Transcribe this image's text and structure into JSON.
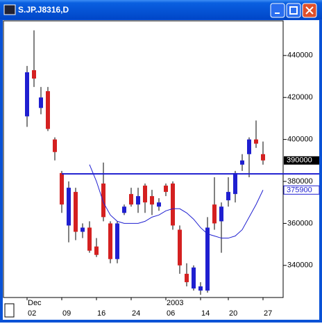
{
  "chart_data": {
    "type": "candlestick",
    "title": "S.JP.J8316,D",
    "categories": [
      "02",
      null,
      null,
      null,
      null,
      "09",
      null,
      null,
      null,
      null,
      "16",
      null,
      null,
      null,
      null,
      "24",
      null,
      null,
      null,
      null,
      "06",
      null,
      null,
      null,
      null,
      "14",
      null,
      null,
      null,
      "20",
      null,
      null,
      null,
      null,
      "27"
    ],
    "top_labels": [
      "Dec",
      null,
      null,
      null,
      null,
      null,
      null,
      null,
      null,
      null,
      null,
      null,
      null,
      null,
      null,
      null,
      null,
      null,
      null,
      null,
      "2003",
      null,
      null,
      null,
      null,
      null,
      null,
      null,
      null,
      null,
      null,
      null,
      null,
      null,
      null
    ],
    "open": [
      411000,
      433000,
      415000,
      423000,
      400000,
      384000,
      359000,
      375000,
      356000,
      358000,
      349000,
      379000,
      360000,
      343000,
      365000,
      374000,
      369000,
      378000,
      373000,
      368000,
      378000,
      379000,
      357000,
      336000,
      329000,
      328000,
      328000,
      369000,
      361000,
      371000,
      374000,
      388000,
      393000,
      400000,
      393000
    ],
    "high": [
      435000,
      452000,
      425000,
      425000,
      401000,
      385000,
      380000,
      377000,
      360000,
      361000,
      353000,
      389000,
      361000,
      361000,
      369000,
      377000,
      377000,
      379000,
      376000,
      372000,
      379000,
      380000,
      359000,
      341000,
      340000,
      332000,
      363000,
      382000,
      370000,
      382000,
      385000,
      393000,
      401000,
      409000,
      399000
    ],
    "low": [
      406000,
      425000,
      412000,
      404000,
      390000,
      365000,
      351000,
      352000,
      353000,
      346000,
      344000,
      361000,
      341000,
      341000,
      364000,
      368000,
      365000,
      365000,
      364000,
      366000,
      373000,
      357000,
      336000,
      330000,
      328000,
      326000,
      327000,
      357000,
      346000,
      368000,
      370000,
      385000,
      382000,
      396000,
      388000
    ],
    "close": [
      432000,
      429000,
      420000,
      405000,
      394000,
      369000,
      377000,
      356000,
      358000,
      347000,
      345000,
      363000,
      343000,
      360000,
      368000,
      369000,
      373000,
      370000,
      369000,
      370000,
      375000,
      359000,
      340000,
      332000,
      339000,
      330000,
      358000,
      360000,
      368000,
      375000,
      384000,
      390000,
      400000,
      398000,
      390000
    ],
    "up_color": "#1f1fd0",
    "down_color": "#d42020",
    "ma": {
      "color": "#1f1fd0",
      "values": [
        null,
        null,
        null,
        null,
        null,
        null,
        null,
        null,
        null,
        388000,
        380000,
        370000,
        364000,
        361000,
        360000,
        360000,
        360000,
        361000,
        363000,
        364000,
        366000,
        367000,
        367000,
        365000,
        362000,
        358000,
        355000,
        354000,
        353000,
        353000,
        354000,
        357000,
        363000,
        369000,
        375900
      ]
    },
    "hline": {
      "value": 383600,
      "color": "#1f1fd0"
    },
    "ylim": [
      324700,
      456500
    ],
    "yticks": [
      340000,
      360000,
      380000,
      400000,
      420000,
      440000
    ]
  }
}
